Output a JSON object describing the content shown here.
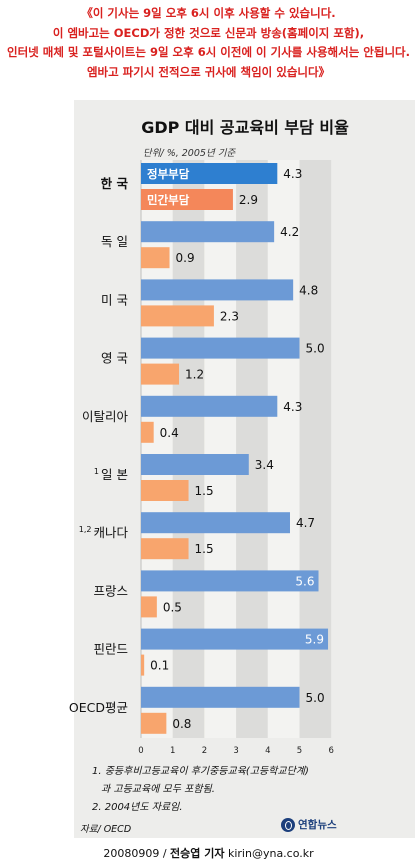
{
  "embargo_notice": [
    "《이 기사는 9일 오후 6시 이후 사용할 수 있습니다.",
    "이 엠바고는 OECD가 정한 것으로 신문과 방송(홈페이지 포함),",
    "인터넷 매체 및 포털사이트는 9일 오후 6시 이전에 이 기사를 사용해서는 안됩니다.",
    "엠바고 파기시 전적으로 귀사에 책임이 있습니다》"
  ],
  "chart_data": {
    "type": "bar",
    "orientation": "horizontal",
    "title": "GDP 대비 공교육비 부담 비율",
    "unit_note": "단위/ %, 2005년 기준",
    "categories": [
      "한 국",
      "독 일",
      "미 국",
      "영 국",
      "이탈리아",
      "일 본",
      "캐나다",
      "프랑스",
      "핀란드",
      "OECD평균"
    ],
    "category_superscripts": [
      "",
      "",
      "",
      "",
      "",
      "1",
      "1,2",
      "",
      "",
      ""
    ],
    "series": [
      {
        "name": "정부부담",
        "values": [
          4.3,
          4.2,
          4.8,
          5.0,
          4.3,
          3.4,
          4.7,
          5.6,
          5.9,
          5.0
        ],
        "color": "#6c9ad6",
        "highlight_color": "#2e7fd0"
      },
      {
        "name": "민간부담",
        "values": [
          2.9,
          0.9,
          2.3,
          1.2,
          0.4,
          1.5,
          1.5,
          0.5,
          0.1,
          0.8
        ],
        "color": "#f8a56d",
        "highlight_color": "#f4875a"
      }
    ],
    "value_labels": [
      [
        "4.3",
        "4.2",
        "4.8",
        "5.0",
        "4.3",
        "3.4",
        "4.7",
        "5.6",
        "5.9",
        "5.0"
      ],
      [
        "2.9",
        "0.9",
        "2.3",
        "1.2",
        "0.4",
        "1.5",
        "1.5",
        "0.5",
        "0.1",
        "0.8"
      ]
    ],
    "highlight_category": "한 국",
    "x_ticks": [
      "0",
      "1",
      "2",
      "3",
      "4",
      "5",
      "6"
    ],
    "xlim": [
      0,
      6
    ],
    "alternating_column_shading": true,
    "notes": [
      "1. 중등후비고등교육이 후기중등교육(고등학교단계)",
      "과 고등교육에 모두 포함됨.",
      "2. 2004년도 자료임."
    ],
    "source": "자료/ OECD"
  },
  "logo_text": "연합뉴스",
  "credit": {
    "date": "20080909 /",
    "reporter": "전승엽 기자",
    "email": "kirin@yna.co.kr"
  }
}
